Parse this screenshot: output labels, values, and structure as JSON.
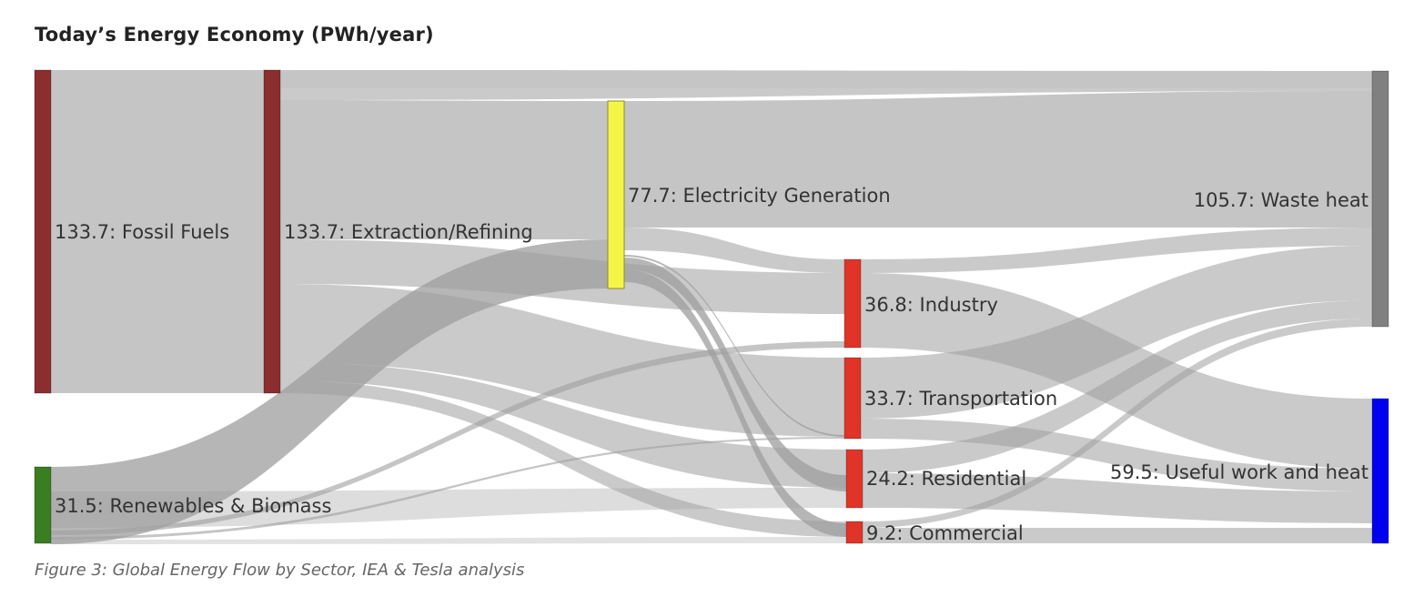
{
  "title": "Today’s Energy Economy (PWh/year)",
  "caption": "Figure 3: Global Energy Flow by Sector, IEA & Tesla analysis",
  "chart_data": {
    "type": "sankey",
    "units": "PWh/year",
    "nodes": [
      {
        "id": "fossil",
        "value": 133.7,
        "label": "133.7: Fossil Fuels",
        "color": "#8b2e2e"
      },
      {
        "id": "renew",
        "value": 31.5,
        "label": "31.5: Renewables & Biomass",
        "color": "#3a7d22"
      },
      {
        "id": "extract",
        "value": 133.7,
        "label": "133.7: Extraction/Refining",
        "color": "#8b2e2e"
      },
      {
        "id": "elec",
        "value": 77.7,
        "label": "77.7: Electricity Generation",
        "color": "#f5f548"
      },
      {
        "id": "industry",
        "value": 36.8,
        "label": "36.8: Industry",
        "color": "#e03428"
      },
      {
        "id": "transport",
        "value": 33.7,
        "label": "33.7: Transportation",
        "color": "#e03428"
      },
      {
        "id": "residential",
        "value": 24.2,
        "label": "24.2: Residential",
        "color": "#e03428"
      },
      {
        "id": "commercial",
        "value": 9.2,
        "label": "9.2: Commercial",
        "color": "#e03428"
      },
      {
        "id": "waste",
        "value": 105.7,
        "label": "105.7: Waste heat",
        "color": "#808080"
      },
      {
        "id": "useful",
        "value": 59.5,
        "label": "59.5: Useful work and heat",
        "color": "#0000ee"
      }
    ],
    "link_color": "#9e9e9e"
  }
}
